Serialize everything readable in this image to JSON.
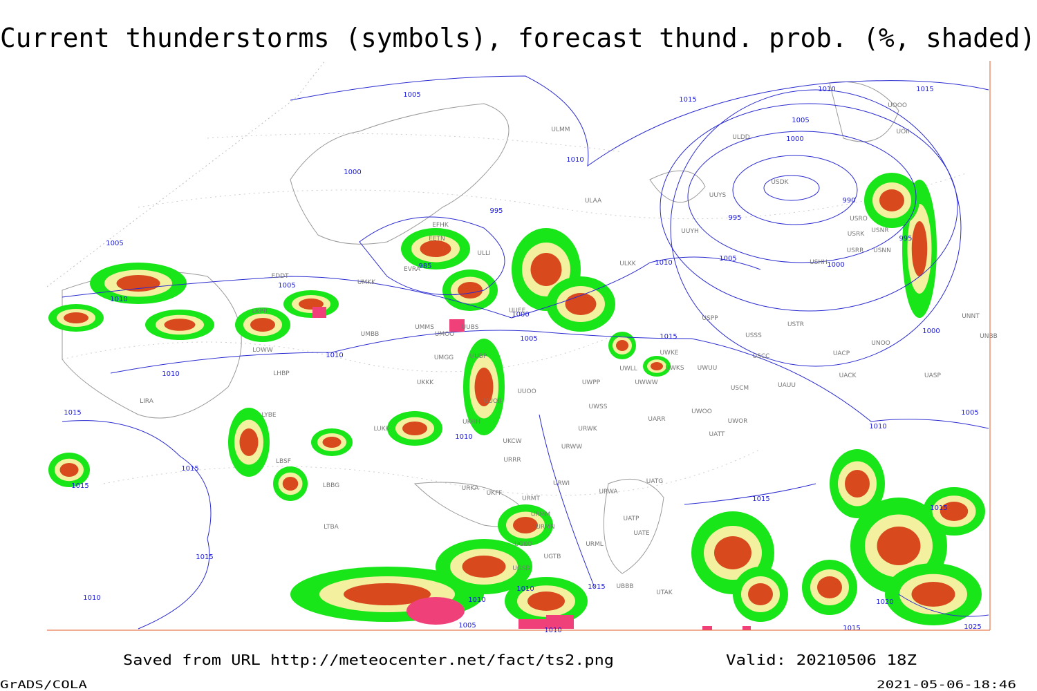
{
  "header": {
    "title": "Current thunderstorms (symbols), forecast thund. prob. (%, shaded)"
  },
  "map": {
    "isobar_labels": [
      1005,
      1015,
      1010,
      1015,
      1005,
      1000,
      1010,
      1000,
      990,
      995,
      995,
      995,
      1005,
      1010,
      1005,
      1000,
      985,
      1005,
      1010,
      1000,
      1005,
      1015,
      1000,
      1010,
      1010,
      1015,
      1005,
      1010,
      1010,
      1015,
      1015,
      1015,
      1015,
      1015,
      1015,
      1010,
      1010,
      1010,
      1020,
      1005,
      1010,
      1015,
      1025
    ],
    "stations": [
      "ULAA",
      "UUYH",
      "UUYS",
      "USDK",
      "ULKK",
      "ULMM",
      "ULDD",
      "UOOO",
      "UOII",
      "USRO",
      "USRK",
      "USNR",
      "USRR",
      "USNN",
      "USHH",
      "ULLI",
      "EFHK",
      "EETN",
      "EVRA",
      "UMKK",
      "EDDT",
      "LKPR",
      "UMMS",
      "UMOO",
      "UUBS",
      "UUEE",
      "UMBB",
      "LOWW",
      "UMGG",
      "UUBP",
      "LHBP",
      "UKKK",
      "UUOO",
      "UWPP",
      "UWWW",
      "UWKE",
      "UWKS",
      "UWUU",
      "UWLL",
      "USSS",
      "USPP",
      "USTR",
      "USCC",
      "USCM",
      "UAUU",
      "UACP",
      "UACK",
      "UNOO",
      "UNNT",
      "UNBB",
      "UASP",
      "LIRA",
      "LYBE",
      "UKHH",
      "UUOB",
      "LUKK",
      "UWSS",
      "UARR",
      "UWOO",
      "UWOR",
      "UATT",
      "URWK",
      "UKCW",
      "URWW",
      "URRR",
      "LBSF",
      "LBBG",
      "URKA",
      "UKFF",
      "URMT",
      "URWI",
      "URWA",
      "UATG",
      "URMM",
      "URMN",
      "UATP",
      "UATE",
      "LTBA",
      "UGKO",
      "URML",
      "UGTB",
      "UGSB",
      "UBBB",
      "UTAK"
    ]
  },
  "footer": {
    "source": "Saved from URL http://meteocenter.net/fact/ts2.png",
    "valid": "Valid: 20210506 18Z",
    "software": "GrADS/COLA",
    "timestamp": "2021-05-06-18:46"
  }
}
